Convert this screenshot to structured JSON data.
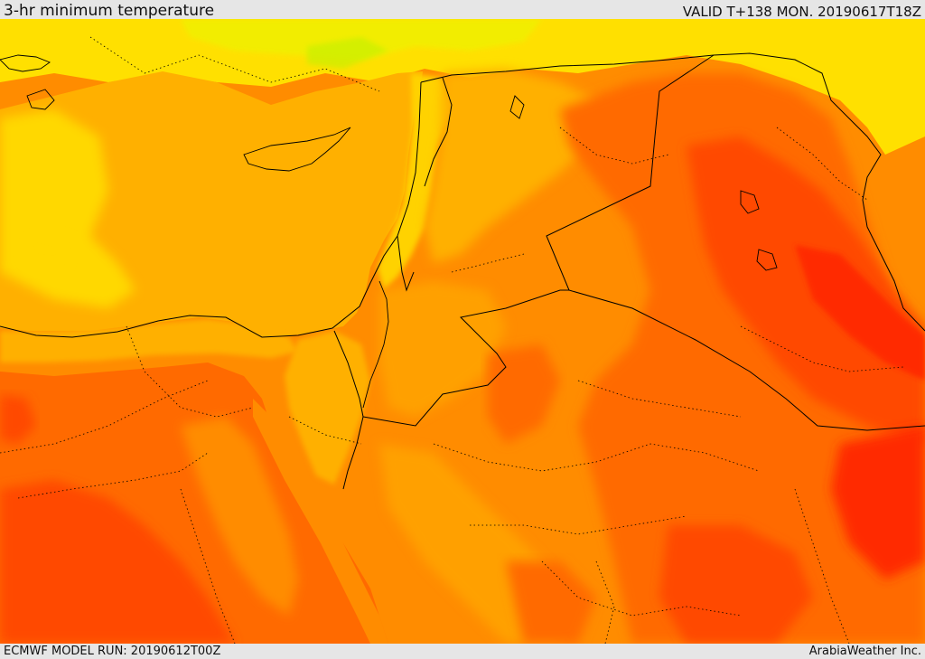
{
  "header": {
    "title": "3-hr minimum temperature",
    "valid": "VALID T+138 MON. 20190617T18Z"
  },
  "footer": {
    "model_run": "ECMWF MODEL RUN: 20190612T00Z",
    "credit": "ArabiaWeather Inc."
  },
  "map_style": {
    "colors": {
      "yellow": "#ffee00",
      "yellow_light": "#e8f000",
      "gold": "#ffd200",
      "amber": "#ffb000",
      "orange": "#ff8c00",
      "orange_dark": "#ff6a00",
      "red_orange": "#ff4a00",
      "red": "#ff2a00",
      "green_tint": "#c8f000",
      "border": "#000000"
    }
  }
}
